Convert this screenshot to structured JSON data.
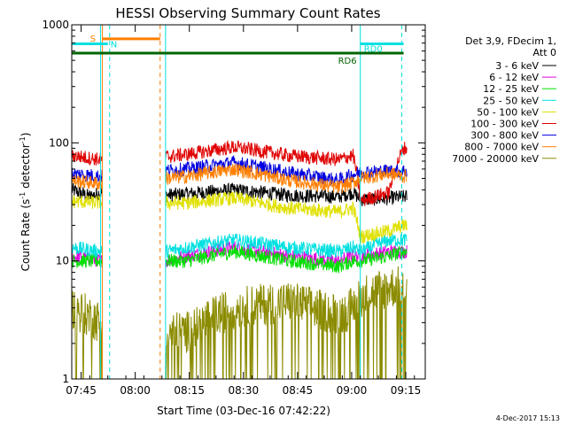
{
  "chart_data": {
    "type": "line",
    "title": "HESSI Observing Summary Count Rates",
    "xlabel": "Start Time (03-Dec-16 07:42:22)",
    "ylabel_main": "Count Rate (s",
    "ylabel_sup1": "-1",
    "ylabel_mid": " detector",
    "ylabel_sup2": "-1",
    "ylabel_end": ")",
    "y_scale": "log",
    "ylim": [
      1,
      1000
    ],
    "xlim_min": [
      0,
      98
    ],
    "x_ticks": [
      {
        "label": "07:45",
        "m": 2.6
      },
      {
        "label": "08:00",
        "m": 17.6
      },
      {
        "label": "08:15",
        "m": 32.6
      },
      {
        "label": "08:30",
        "m": 47.6
      },
      {
        "label": "08:45",
        "m": 62.6
      },
      {
        "label": "09:00",
        "m": 77.6
      },
      {
        "label": "09:15",
        "m": 92.6
      }
    ],
    "y_ticks": [
      {
        "label": "1",
        "v": 1
      },
      {
        "label": "10",
        "v": 10
      },
      {
        "label": "100",
        "v": 100
      },
      {
        "label": "1000",
        "v": 1000
      }
    ],
    "legend_header": [
      "Det 3,9, FDecim 1,",
      "Att 0"
    ],
    "legend_position": "right",
    "series": [
      {
        "name": "3 - 6 keV",
        "color": "#000000",
        "values": [
          [
            0,
            40
          ],
          [
            5,
            35
          ],
          [
            8,
            38
          ],
          [
            26,
            36
          ],
          [
            32,
            37
          ],
          [
            45,
            40
          ],
          [
            60,
            36
          ],
          [
            74,
            35
          ],
          [
            78,
            38
          ],
          [
            80,
            33
          ],
          [
            88,
            34
          ],
          [
            92,
            35
          ]
        ]
      },
      {
        "name": "6 - 12 keV",
        "color": "#e000e0",
        "values": [
          [
            0,
            11
          ],
          [
            8,
            10
          ],
          [
            26,
            10
          ],
          [
            32,
            11
          ],
          [
            45,
            13
          ],
          [
            60,
            11
          ],
          [
            74,
            10
          ],
          [
            78,
            11
          ],
          [
            80,
            11
          ],
          [
            88,
            12
          ],
          [
            92,
            12
          ]
        ]
      },
      {
        "name": "12 - 25 keV",
        "color": "#00e000",
        "values": [
          [
            0,
            10
          ],
          [
            8,
            10
          ],
          [
            26,
            10
          ],
          [
            32,
            10
          ],
          [
            45,
            12
          ],
          [
            60,
            10
          ],
          [
            74,
            9
          ],
          [
            78,
            10
          ],
          [
            80,
            10
          ],
          [
            88,
            11
          ],
          [
            92,
            12
          ]
        ]
      },
      {
        "name": "25 - 50 keV",
        "color": "#00e0e0",
        "values": [
          [
            0,
            13
          ],
          [
            8,
            12
          ],
          [
            26,
            12
          ],
          [
            32,
            13
          ],
          [
            45,
            15
          ],
          [
            60,
            13
          ],
          [
            74,
            12
          ],
          [
            78,
            13
          ],
          [
            80,
            12
          ],
          [
            88,
            15
          ],
          [
            92,
            15
          ]
        ]
      },
      {
        "name": "50 - 100 keV",
        "color": "#e0e000",
        "values": [
          [
            0,
            32
          ],
          [
            8,
            31
          ],
          [
            26,
            31
          ],
          [
            32,
            31
          ],
          [
            45,
            34
          ],
          [
            60,
            28
          ],
          [
            74,
            26
          ],
          [
            78,
            28
          ],
          [
            80,
            16
          ],
          [
            88,
            18
          ],
          [
            92,
            20
          ]
        ]
      },
      {
        "name": "100 - 300 keV",
        "color": "#e00000",
        "values": [
          [
            0,
            78
          ],
          [
            8,
            72
          ],
          [
            26,
            76
          ],
          [
            32,
            80
          ],
          [
            45,
            92
          ],
          [
            60,
            78
          ],
          [
            74,
            72
          ],
          [
            78,
            78
          ],
          [
            80,
            32
          ],
          [
            88,
            38
          ],
          [
            92,
            90
          ]
        ]
      },
      {
        "name": "300 - 800 keV",
        "color": "#0000e0",
        "values": [
          [
            0,
            55
          ],
          [
            8,
            52
          ],
          [
            26,
            58
          ],
          [
            32,
            60
          ],
          [
            45,
            68
          ],
          [
            60,
            56
          ],
          [
            74,
            48
          ],
          [
            78,
            54
          ],
          [
            80,
            56
          ],
          [
            88,
            58
          ],
          [
            92,
            58
          ]
        ]
      },
      {
        "name": "800 - 7000 keV",
        "color": "#ff7f00",
        "values": [
          [
            0,
            48
          ],
          [
            8,
            45
          ],
          [
            26,
            50
          ],
          [
            32,
            52
          ],
          [
            45,
            60
          ],
          [
            60,
            48
          ],
          [
            74,
            42
          ],
          [
            78,
            46
          ],
          [
            80,
            50
          ],
          [
            88,
            55
          ],
          [
            92,
            52
          ]
        ]
      },
      {
        "name": "7000 - 20000 keV",
        "color": "#8b8b00",
        "values": [
          [
            0,
            4
          ],
          [
            8,
            3
          ],
          [
            26,
            2.5
          ],
          [
            32,
            2.5
          ],
          [
            45,
            4
          ],
          [
            60,
            4.5
          ],
          [
            74,
            3.5
          ],
          [
            78,
            4
          ],
          [
            80,
            5
          ],
          [
            88,
            6
          ],
          [
            92,
            6
          ]
        ]
      }
    ],
    "data_gaps": [
      [
        8.5,
        26
      ]
    ],
    "markers": {
      "solid_vlines": [
        {
          "m": 8,
          "color": "#00e0e0"
        },
        {
          "m": 8.5,
          "color": "#ff7f00"
        },
        {
          "m": 26,
          "color": "#00e0e0"
        },
        {
          "m": 80,
          "color": "#00e0e0"
        }
      ],
      "dashed_vlines": [
        {
          "m": 10.5,
          "color": "#00e0e0"
        },
        {
          "m": 24.5,
          "color": "#ff7f00"
        },
        {
          "m": 91.5,
          "color": "#00e0e0"
        }
      ],
      "bars": [
        {
          "label": "S",
          "color": "#ff7f00",
          "x0": 8.5,
          "x1": 24.5,
          "y": 760
        },
        {
          "label": "N",
          "color": "#00e0e0",
          "x0": 0,
          "x1": 10,
          "y": 690
        },
        {
          "label": "RD0",
          "color": "#00e0e0",
          "x0": 80,
          "x1": 92,
          "y": 690
        },
        {
          "label": "RD6",
          "color": "#006400",
          "x0": 0,
          "x1": 92,
          "y": 575
        }
      ]
    }
  },
  "footer_stamp": "4-Dec-2017 15:13"
}
